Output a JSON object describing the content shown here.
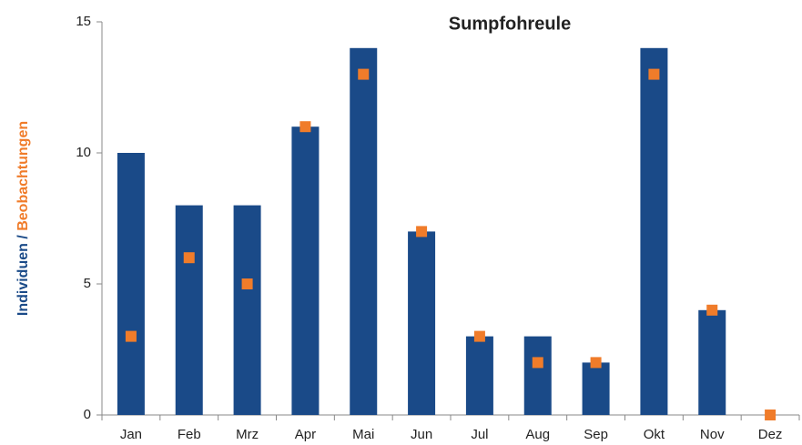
{
  "chart_data": {
    "type": "bar",
    "title": "Sumpfohreule",
    "ylabel": [
      {
        "text": "Individuen /",
        "color": "#1a4a88"
      },
      {
        "text": "Beobachtungen",
        "color": "#f07c2a"
      }
    ],
    "categories": [
      "Jan",
      "Feb",
      "Mrz",
      "Apr",
      "Mai",
      "Jun",
      "Jul",
      "Aug",
      "Sep",
      "Okt",
      "Nov",
      "Dez"
    ],
    "series": [
      {
        "type": "bar",
        "color": "#1a4a88",
        "values": [
          10,
          8,
          8,
          11,
          14,
          7,
          3,
          3,
          2,
          14,
          4,
          0
        ]
      },
      {
        "type": "scatter",
        "color": "#f07c2a",
        "values": [
          3,
          6,
          5,
          11,
          13,
          7,
          3,
          2,
          2,
          13,
          4,
          0
        ]
      }
    ],
    "ylim": [
      0,
      15
    ],
    "yticks": [
      0,
      5,
      10,
      15
    ]
  }
}
